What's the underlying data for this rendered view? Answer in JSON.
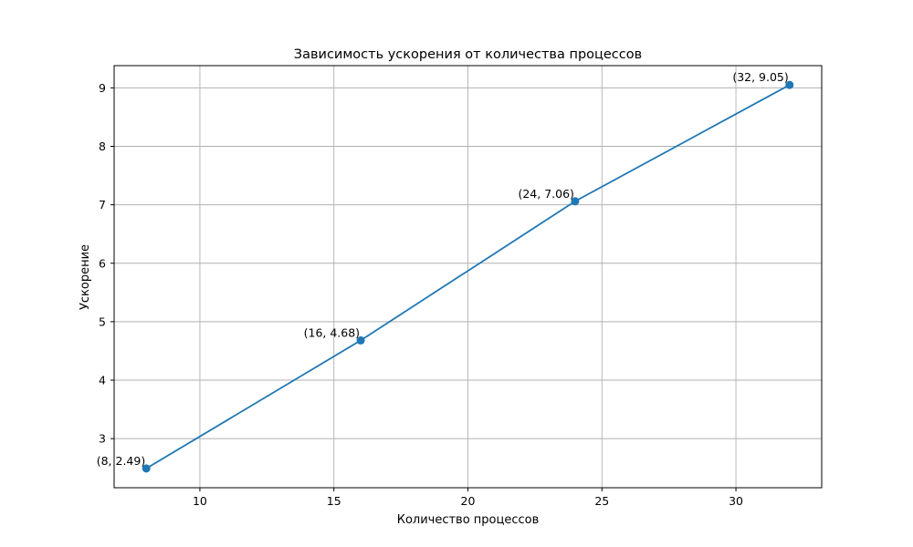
{
  "chart_data": {
    "type": "line",
    "title": "Зависимость ускорения от количества процессов",
    "xlabel": "Количество процессов",
    "ylabel": "Ускорение",
    "x": [
      8,
      16,
      24,
      32
    ],
    "y": [
      2.49,
      4.68,
      7.06,
      9.05
    ],
    "point_labels": [
      "(8, 2.49)",
      "(16, 4.68)",
      "(24, 7.06)",
      "(32, 9.05)"
    ],
    "xlim": [
      6.8,
      33.2
    ],
    "ylim": [
      2.16,
      9.38
    ],
    "xticks": [
      10,
      15,
      20,
      25,
      30
    ],
    "yticks": [
      3,
      4,
      5,
      6,
      7,
      8,
      9
    ],
    "xtick_labels": [
      "10",
      "15",
      "20",
      "25",
      "30"
    ],
    "ytick_labels": [
      "3",
      "4",
      "5",
      "6",
      "7",
      "8",
      "9"
    ],
    "grid": true,
    "markers": true,
    "series_color": "#1f77b4",
    "grid_color": "#b0b0b0",
    "axis_color": "#000000"
  }
}
